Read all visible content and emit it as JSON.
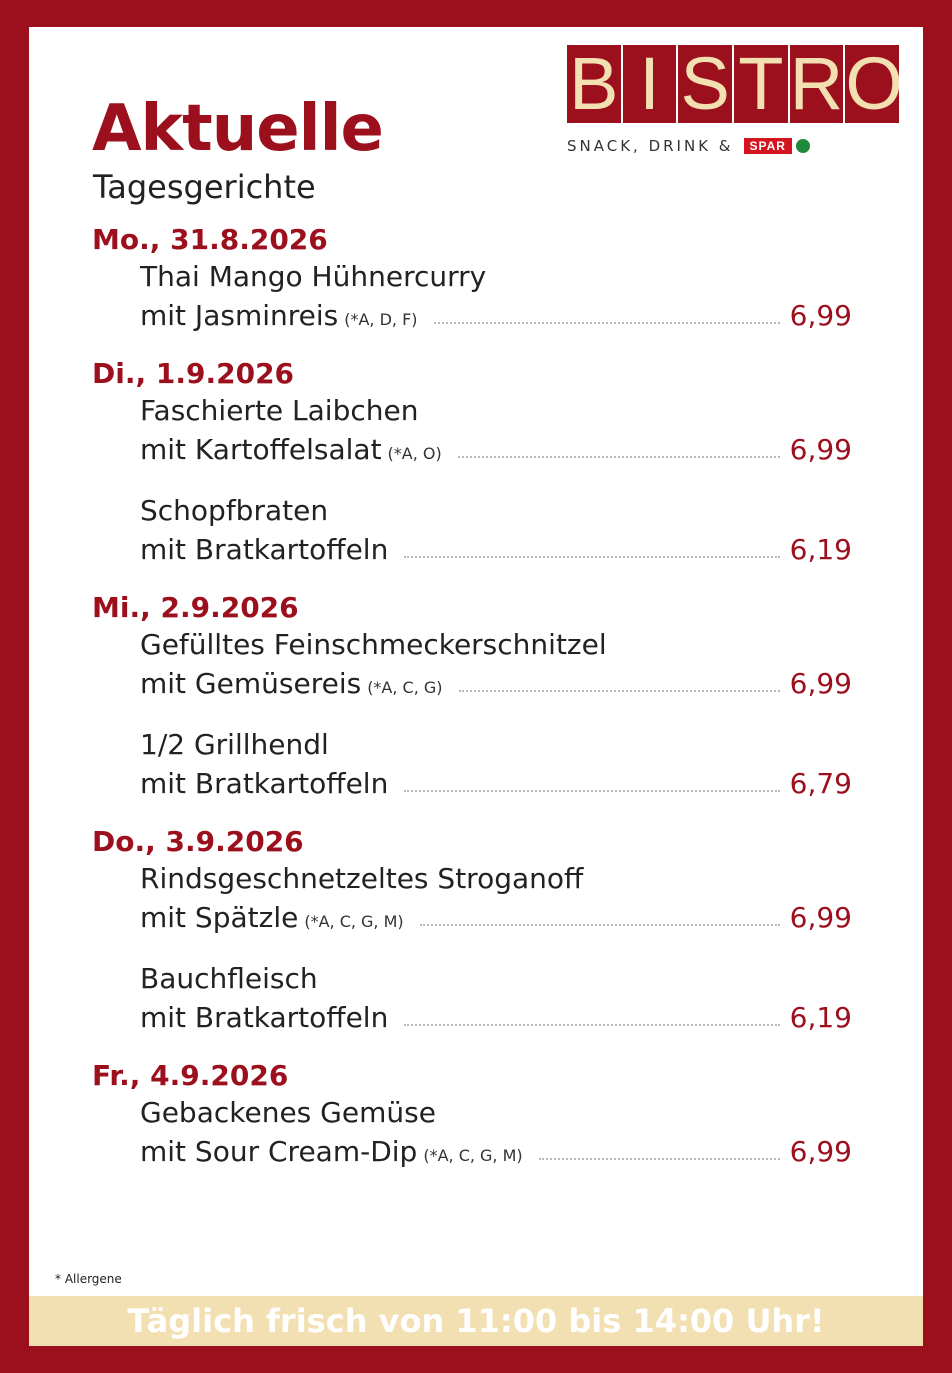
{
  "header": {
    "title": "Aktuelle",
    "subtitle": "Tagesgerichte"
  },
  "logo": {
    "letters": [
      "B",
      "I",
      "S",
      "T",
      "R",
      "O"
    ],
    "tagline": "SNACK, DRINK &",
    "brand": "SPAR",
    "colors": {
      "red": "#9c0f1d",
      "cream": "#f2dfb2",
      "spar_red": "#d4141e",
      "spar_green": "#1f8a3b"
    }
  },
  "days": [
    {
      "label": "Mo., 31.8.2026",
      "dishes": [
        {
          "name": "Thai Mango Hühnercurry",
          "side": "mit Jasminreis",
          "allergens": "(*A, D, F)",
          "price": "6,99"
        }
      ]
    },
    {
      "label": "Di., 1.9.2026",
      "dishes": [
        {
          "name": "Faschierte Laibchen",
          "side": "mit Kartoffelsalat",
          "allergens": "(*A, O)",
          "price": "6,99"
        },
        {
          "name": "Schopfbraten",
          "side": "mit Bratkartoffeln",
          "allergens": "",
          "price": "6,19"
        }
      ]
    },
    {
      "label": "Mi., 2.9.2026",
      "dishes": [
        {
          "name": "Gefülltes Feinschmeckerschnitzel",
          "side": "mit Gemüsereis",
          "allergens": "(*A, C, G)",
          "price": "6,99"
        },
        {
          "name": "1/2 Grillhendl",
          "side": "mit Bratkartoffeln",
          "allergens": "",
          "price": "6,79"
        }
      ]
    },
    {
      "label": "Do., 3.9.2026",
      "dishes": [
        {
          "name": "Rindsgeschnetzeltes Stroganoff",
          "side": "mit Spätzle",
          "allergens": "(*A, C, G, M)",
          "price": "6,99"
        },
        {
          "name": "Bauchfleisch",
          "side": "mit Bratkartoffeln",
          "allergens": "",
          "price": "6,19"
        }
      ]
    },
    {
      "label": "Fr., 4.9.2026",
      "dishes": [
        {
          "name": "Gebackenes Gemüse",
          "side": "mit Sour Cream-Dip",
          "allergens": "(*A, C, G, M)",
          "price": "6,99"
        }
      ]
    }
  ],
  "footnote": "* Allergene",
  "banner": "Täglich frisch von 11:00 bis 14:00 Uhr!"
}
